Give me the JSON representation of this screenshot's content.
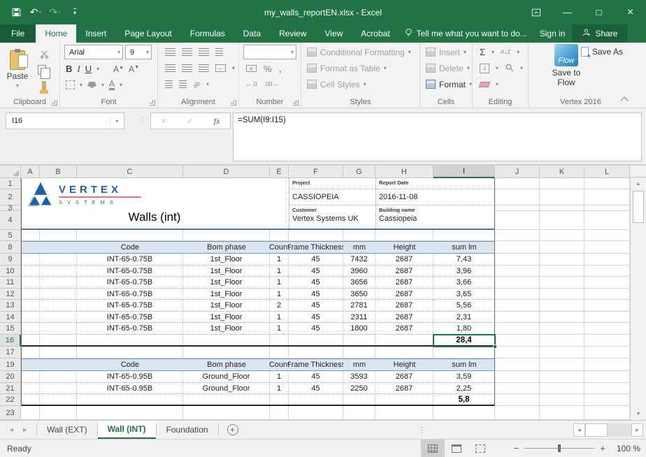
{
  "titlebar": {
    "title": "my_walls_reportEN.xlsx - Excel"
  },
  "icons": {
    "save": "shape",
    "undo": "↶",
    "redo": "↷",
    "qat_more": "▾",
    "dropdown": "▾",
    "ribbon_display_options": "shape",
    "minimize": "—",
    "maximize": "□",
    "close": "×",
    "lightbulb": "shape",
    "person": "shape",
    "ellipsis": "⋮",
    "cancel": "×",
    "check": "✓",
    "fx": "fx",
    "sum": "Σ",
    "fill_down": "↓",
    "percent": "%",
    "comma": ",",
    "decimal_left": "←.0",
    "decimal_right": ".00→",
    "bold": "B",
    "italic": "I",
    "underline": "U",
    "grow_font": "A",
    "shrink_font": "A",
    "sort_az": "A↓Z",
    "merge": "↔",
    "orientation": "ab",
    "left_arrow": "◂",
    "right_arrow": "▸",
    "up_arrow": "▲",
    "down_arrow": "▼",
    "new_sheet": "+",
    "zoom_out": "−",
    "zoom_in": "+",
    "accounting": "¤"
  },
  "ribbon": {
    "tabs": [
      "File",
      "Home",
      "Insert",
      "Page Layout",
      "Formulas",
      "Data",
      "Review",
      "View",
      "Acrobat"
    ],
    "active_tab": "Home",
    "tell_me": "Tell me what you want to do...",
    "sign_in": "Sign in",
    "share": "Share",
    "clipboard": {
      "paste": "Paste",
      "label": "Clipboard"
    },
    "font": {
      "name": "Arial",
      "size": "9",
      "label": "Font"
    },
    "alignment": {
      "label": "Alignment"
    },
    "number": {
      "label": "Number"
    },
    "styles": {
      "items": [
        "Conditional Formatting",
        "Format as Table",
        "Cell Styles"
      ],
      "label": "Styles"
    },
    "cells": {
      "items": [
        "Insert",
        "Delete",
        "Format"
      ],
      "label": "Cells"
    },
    "editing": {
      "label": "Editing"
    },
    "vertex": {
      "save_to_line1": "Save to",
      "save_to_line2": "Flow",
      "flow_badge": "Flow",
      "save_as": "Save As",
      "label": "Vertex 2016"
    }
  },
  "formula_bar": {
    "name_box": "I16",
    "formula": "=SUM(I9:I15)"
  },
  "sheet": {
    "columns": [
      "A",
      "B",
      "C",
      "D",
      "E",
      "F",
      "G",
      "H",
      "I",
      "J",
      "K",
      "L"
    ],
    "selected_column": "I",
    "row_numbers": [
      "1",
      "2",
      "3",
      "4",
      "5",
      "8",
      "9",
      "10",
      "11",
      "12",
      "13",
      "14",
      "15",
      "16",
      "17",
      "19",
      "20",
      "21",
      "22",
      "23"
    ],
    "selected_row": "16",
    "report": {
      "logo_text": "VERTEX",
      "logo_sub": "SYSTEMS",
      "title": "Walls (int)",
      "project_label": "Project",
      "project": "CASSIOPEIA",
      "customer_label": "Customer",
      "customer": "Vertex Systems UK",
      "report_date_label": "Report Date",
      "report_date": "2016-11-08",
      "building_label": "Building name",
      "building": "Cassiopeia"
    },
    "table_headers": [
      "Code",
      "Bom phase",
      "Count",
      "Frame Thickness",
      "mm",
      "Height",
      "sum lm"
    ],
    "table1": {
      "rows": [
        {
          "code": "INT-65-0.75B",
          "bom_phase": "1st_Floor",
          "count": "1",
          "frame_thickness": "45",
          "mm": "7432",
          "height": "2687",
          "sum_lm": "7,43"
        },
        {
          "code": "INT-65-0.75B",
          "bom_phase": "1st_Floor",
          "count": "1",
          "frame_thickness": "45",
          "mm": "3960",
          "height": "2687",
          "sum_lm": "3,96"
        },
        {
          "code": "INT-65-0.75B",
          "bom_phase": "1st_Floor",
          "count": "1",
          "frame_thickness": "45",
          "mm": "3656",
          "height": "2687",
          "sum_lm": "3,66"
        },
        {
          "code": "INT-65-0.75B",
          "bom_phase": "1st_Floor",
          "count": "1",
          "frame_thickness": "45",
          "mm": "3650",
          "height": "2687",
          "sum_lm": "3,65"
        },
        {
          "code": "INT-65-0.75B",
          "bom_phase": "1st_Floor",
          "count": "2",
          "frame_thickness": "45",
          "mm": "2781",
          "height": "2687",
          "sum_lm": "5,56"
        },
        {
          "code": "INT-65-0.75B",
          "bom_phase": "1st_Floor",
          "count": "1",
          "frame_thickness": "45",
          "mm": "2311",
          "height": "2687",
          "sum_lm": "2,31"
        },
        {
          "code": "INT-65-0.75B",
          "bom_phase": "1st_Floor",
          "count": "1",
          "frame_thickness": "45",
          "mm": "1800",
          "height": "2687",
          "sum_lm": "1,80"
        }
      ],
      "total": "28,4"
    },
    "table2": {
      "rows": [
        {
          "code": "INT-65-0.95B",
          "bom_phase": "Ground_Floor",
          "count": "1",
          "frame_thickness": "45",
          "mm": "3593",
          "height": "2687",
          "sum_lm": "3,59"
        },
        {
          "code": "INT-65-0.95B",
          "bom_phase": "Ground_Floor",
          "count": "1",
          "frame_thickness": "45",
          "mm": "2250",
          "height": "2687",
          "sum_lm": "2,25"
        }
      ],
      "total": "5,8"
    }
  },
  "sheet_tabs": {
    "tabs": [
      "Wall (EXT)",
      "Wall (INT)",
      "Foundation"
    ],
    "active": "Wall (INT)"
  },
  "status_bar": {
    "status": "Ready",
    "zoom": "100 %"
  }
}
